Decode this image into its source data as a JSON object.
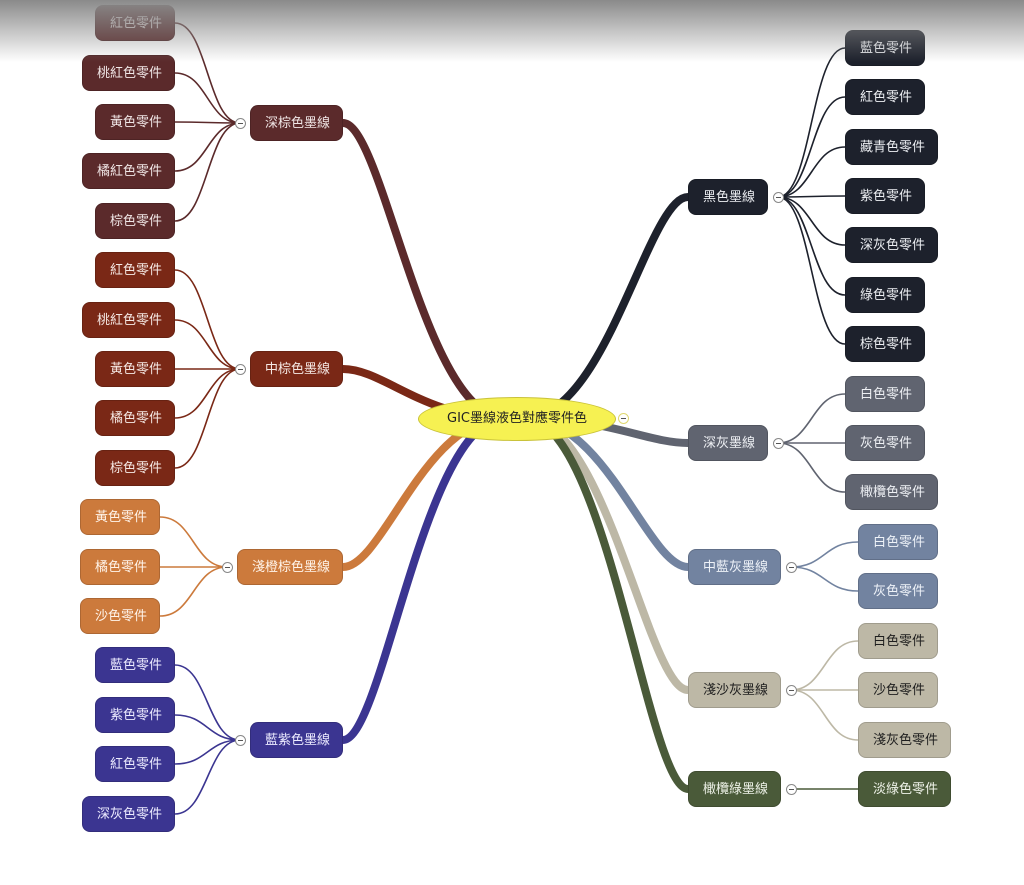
{
  "center": {
    "label": "GIC墨線液色對應零件色",
    "color": "#f6f152"
  },
  "branches": [
    {
      "side": "left",
      "label": "深棕色墨線",
      "color": "#5b2a2b",
      "text_color": "#f0e6e6",
      "children": [
        "紅色零件",
        "桃紅色零件",
        "黃色零件",
        "橘紅色零件",
        "棕色零件"
      ]
    },
    {
      "side": "left",
      "label": "中棕色墨線",
      "color": "#7a2816",
      "text_color": "#f5e8e4",
      "children": [
        "紅色零件",
        "桃紅色零件",
        "黃色零件",
        "橘色零件",
        "棕色零件"
      ]
    },
    {
      "side": "left",
      "label": "淺橙棕色墨線",
      "color": "#cc7a3c",
      "text_color": "#fff4ea",
      "children": [
        "黃色零件",
        "橘色零件",
        "沙色零件"
      ]
    },
    {
      "side": "left",
      "label": "藍紫色墨線",
      "color": "#3b3591",
      "text_color": "#ecebff",
      "children": [
        "藍色零件",
        "紫色零件",
        "紅色零件",
        "深灰色零件"
      ]
    },
    {
      "side": "right",
      "label": "黑色墨線",
      "color": "#1d212c",
      "text_color": "#eceef2",
      "children": [
        "藍色零件",
        "紅色零件",
        "藏青色零件",
        "紫色零件",
        "深灰色零件",
        "綠色零件",
        "棕色零件"
      ]
    },
    {
      "side": "right",
      "label": "深灰墨線",
      "color": "#606470",
      "text_color": "#eef0f4",
      "children": [
        "白色零件",
        "灰色零件",
        "橄欖色零件"
      ]
    },
    {
      "side": "right",
      "label": "中藍灰墨線",
      "color": "#7283a0",
      "text_color": "#eef2f8",
      "children": [
        "白色零件",
        "灰色零件"
      ]
    },
    {
      "side": "right",
      "label": "淺沙灰墨線",
      "color": "#bdb8a6",
      "text_color": "#1e1e1e",
      "children": [
        "白色零件",
        "沙色零件",
        "淺灰色零件"
      ]
    },
    {
      "side": "right",
      "label": "橄欖綠墨線",
      "color": "#4a5a39",
      "text_color": "#eef2e8",
      "children": [
        "淡綠色零件"
      ]
    }
  ]
}
